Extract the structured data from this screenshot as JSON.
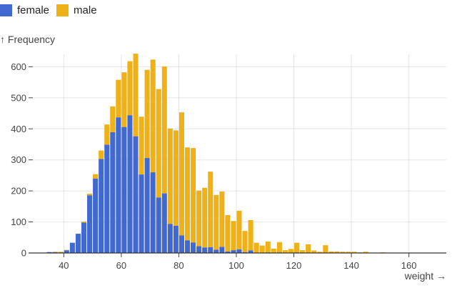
{
  "chart_data": {
    "type": "bar",
    "stacked": true,
    "xlabel": "weight →",
    "ylabel": "↑ Frequency",
    "bin_width": 2,
    "bin_starts": [
      34,
      36,
      38,
      40,
      42,
      44,
      46,
      48,
      50,
      52,
      54,
      56,
      58,
      60,
      62,
      64,
      66,
      68,
      70,
      72,
      74,
      76,
      78,
      80,
      82,
      84,
      86,
      88,
      90,
      92,
      94,
      96,
      98,
      100,
      102,
      104,
      106,
      108,
      110,
      112,
      114,
      116,
      118,
      120,
      122,
      124,
      126,
      128,
      130,
      132,
      134,
      136,
      138,
      140,
      142,
      144,
      146,
      148,
      150,
      152,
      154,
      156,
      158,
      160,
      162,
      164,
      166,
      168,
      170
    ],
    "series": [
      {
        "name": "female",
        "color": "#4269d0",
        "values": [
          3,
          3,
          2,
          9,
          33,
          62,
          98,
          186,
          240,
          303,
          349,
          389,
          437,
          406,
          444,
          376,
          253,
          306,
          260,
          179,
          192,
          94,
          88,
          57,
          41,
          34,
          22,
          18,
          19,
          11,
          20,
          5,
          9,
          12,
          3,
          8,
          1,
          1,
          2,
          1,
          2,
          1,
          1,
          2,
          0,
          1,
          0,
          0,
          0,
          0,
          0,
          0,
          0,
          0,
          0,
          0,
          0,
          0,
          1,
          0,
          0,
          0,
          0,
          0,
          0,
          0,
          0,
          0,
          0
        ]
      },
      {
        "name": "male",
        "color": "#efb118",
        "values": [
          0,
          1,
          2,
          1,
          0,
          0,
          3,
          5,
          14,
          27,
          65,
          83,
          121,
          176,
          174,
          266,
          186,
          284,
          363,
          349,
          409,
          307,
          307,
          396,
          299,
          304,
          179,
          192,
          243,
          176,
          178,
          117,
          94,
          124,
          68,
          98,
          32,
          23,
          35,
          13,
          33,
          8,
          12,
          31,
          9,
          27,
          8,
          4,
          25,
          5,
          5,
          4,
          4,
          4,
          2,
          4,
          1,
          1,
          1,
          1,
          1,
          1,
          1,
          0,
          1,
          0,
          0,
          0,
          1
        ]
      }
    ],
    "xlim": [
      29,
      173
    ],
    "ylim": [
      0,
      640
    ],
    "xticks": [
      40,
      60,
      80,
      100,
      120,
      140,
      160
    ],
    "yticks": [
      0,
      100,
      200,
      300,
      400,
      500,
      600
    ],
    "grid": true,
    "legend": "top-left"
  }
}
